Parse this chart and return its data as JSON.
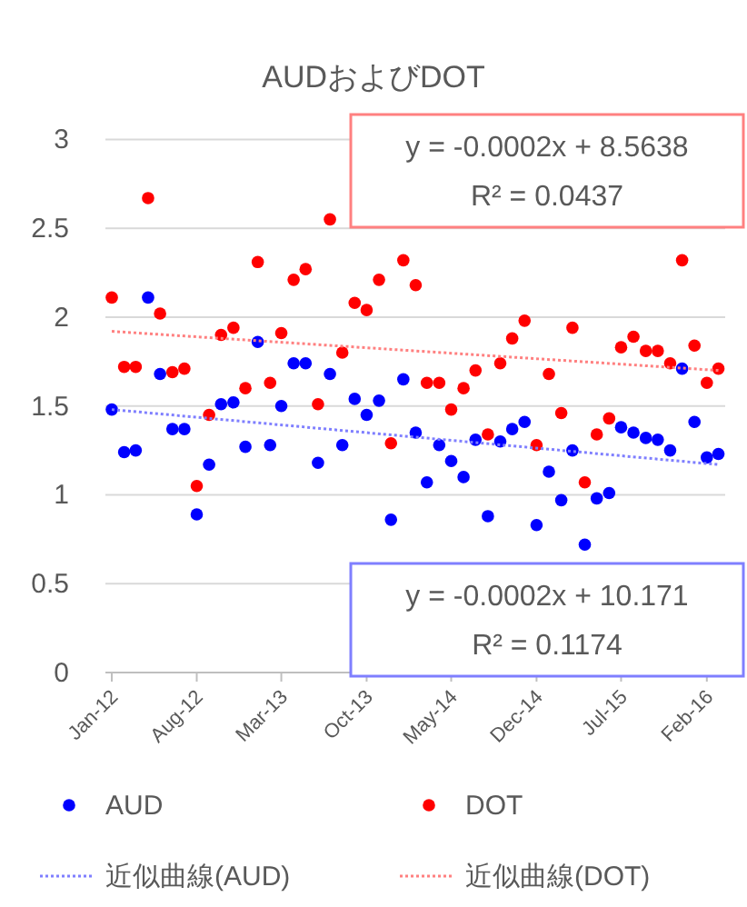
{
  "chart_data": {
    "type": "scatter",
    "title": "AUDおよびDOT",
    "x": [
      "2012-01",
      "2012-02",
      "2012-03",
      "2012-04",
      "2012-05",
      "2012-06",
      "2012-07",
      "2012-08",
      "2012-09",
      "2012-10",
      "2012-11",
      "2012-12",
      "2013-01",
      "2013-02",
      "2013-03",
      "2013-04",
      "2013-05",
      "2013-06",
      "2013-07",
      "2013-08",
      "2013-09",
      "2013-10",
      "2013-11",
      "2013-12",
      "2014-01",
      "2014-02",
      "2014-03",
      "2014-04",
      "2014-05",
      "2014-06",
      "2014-07",
      "2014-08",
      "2014-09",
      "2014-10",
      "2014-11",
      "2014-12",
      "2015-01",
      "2015-02",
      "2015-03",
      "2015-04",
      "2015-05",
      "2015-06",
      "2015-07",
      "2015-08",
      "2015-09",
      "2015-10",
      "2015-11",
      "2015-12",
      "2016-01",
      "2016-02",
      "2016-03"
    ],
    "series": [
      {
        "name": "AUD",
        "color": "#0000ff",
        "values": [
          1.48,
          1.24,
          1.25,
          2.11,
          1.68,
          1.37,
          1.37,
          0.89,
          1.17,
          1.51,
          1.52,
          1.27,
          1.86,
          1.28,
          1.5,
          1.74,
          1.74,
          1.18,
          1.68,
          1.28,
          1.54,
          1.45,
          1.53,
          0.86,
          1.65,
          1.35,
          1.07,
          1.28,
          1.19,
          1.1,
          1.31,
          0.88,
          1.3,
          1.37,
          1.41,
          0.83,
          1.13,
          0.97,
          1.25,
          0.72,
          0.98,
          1.01,
          1.38,
          1.35,
          1.32,
          1.31,
          1.25,
          1.71,
          1.41,
          1.21,
          1.23
        ]
      },
      {
        "name": "DOT",
        "color": "#ff0000",
        "values": [
          2.11,
          1.72,
          1.72,
          2.67,
          2.02,
          1.69,
          1.71,
          1.05,
          1.45,
          1.9,
          1.94,
          1.6,
          2.31,
          1.63,
          1.91,
          2.21,
          2.27,
          1.51,
          2.55,
          1.8,
          2.08,
          2.04,
          2.21,
          1.29,
          2.32,
          2.18,
          1.63,
          1.63,
          1.48,
          1.6,
          1.7,
          1.34,
          1.74,
          1.88,
          1.98,
          1.28,
          1.68,
          1.46,
          1.94,
          1.07,
          1.34,
          1.43,
          1.83,
          1.89,
          1.81,
          1.81,
          1.74,
          2.32,
          1.84,
          1.63,
          1.71
        ]
      },
      {
        "name": "近似曲線(AUD)",
        "type": "line",
        "color": "#7f7fff",
        "line_style": "dotted",
        "marker": "none",
        "x": [
          "2012-01",
          "2016-03"
        ],
        "values": [
          1.48,
          1.17
        ]
      },
      {
        "name": "近似曲線(DOT)",
        "type": "line",
        "color": "#ff8080",
        "line_style": "dotted",
        "marker": "none",
        "x": [
          "2012-01",
          "2016-03"
        ],
        "values": [
          1.92,
          1.7
        ]
      }
    ],
    "xlim": [
      "2011-12-16",
      "2016-03-18"
    ],
    "xticks": [
      {
        "value": "2012-01",
        "label": "Jan-12"
      },
      {
        "value": "2012-08",
        "label": "Aug-12"
      },
      {
        "value": "2013-03",
        "label": "Mar-13"
      },
      {
        "value": "2013-10",
        "label": "Oct-13"
      },
      {
        "value": "2014-05",
        "label": "May-14"
      },
      {
        "value": "2014-12",
        "label": "Dec-14"
      },
      {
        "value": "2015-07",
        "label": "Jul-15"
      },
      {
        "value": "2016-02",
        "label": "Feb-16"
      }
    ],
    "ylim": [
      0,
      3
    ],
    "yticks": [
      0,
      {
        "value": 0.5,
        "label": "0.5"
      },
      1,
      {
        "value": 1.5,
        "label": "1.5"
      },
      2,
      {
        "value": 2.5,
        "label": "2.5"
      },
      3
    ],
    "grid": "y",
    "legend": "bottom",
    "marker": "circle",
    "annotations": [
      "y = -0.0002x + 8.5638",
      "R² = 0.0437",
      "y = -0.0002x + 10.171",
      "R² = 0.1174"
    ]
  }
}
